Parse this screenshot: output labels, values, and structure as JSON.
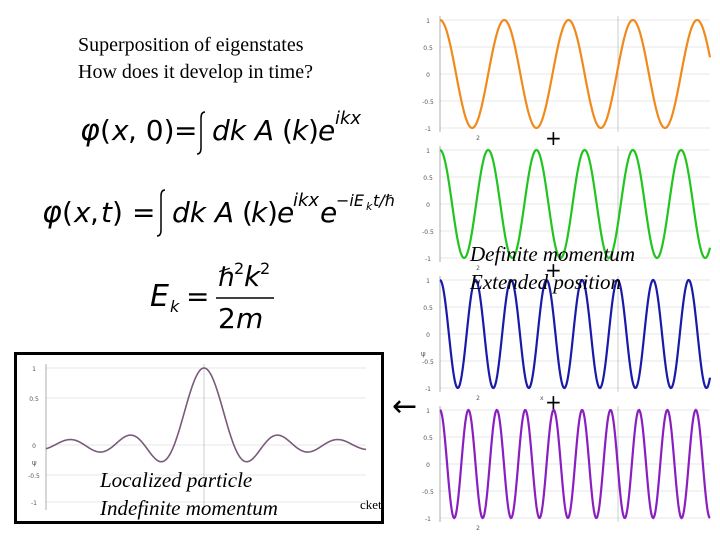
{
  "title": {
    "line1": "Superposition of eigenstates",
    "line2": "How does it develop in time?"
  },
  "equations": {
    "eq1": "φ(x, 0) = ∫dk A(k)e^{ikx}",
    "eq2": "φ(x, t) = ∫dk A(k)e^{ikx} e^{−iE_k t/ℏ}",
    "eq3": "E_k = ℏ²k² / 2m"
  },
  "captions": {
    "right_line1": "Definite momentum",
    "right_line2": "Extended position",
    "left_line1": "Localized particle",
    "left_line2": "Indefinite momentum",
    "packet_label": "cket"
  },
  "symbols": {
    "plus": "+",
    "arrow": "←"
  },
  "colors": {
    "wave1": "#f08a1c",
    "wave2": "#22c41f",
    "wave3": "#1a1aa8",
    "wave4": "#8a1fc0",
    "packet": "#7a5a7a",
    "grid": "#d0d0d0"
  },
  "plots": [
    {
      "name": "orange-wave",
      "cycles": 4.2,
      "y_ticks": [
        "1",
        "0.5",
        "0",
        "-0.5",
        "-1"
      ],
      "x_tick": "2"
    },
    {
      "name": "green-wave",
      "cycles": 5.6,
      "y_ticks": [
        "1",
        "0.5",
        "0",
        "-0.5",
        "-1"
      ],
      "x_tick": "2"
    },
    {
      "name": "blue-wave",
      "cycles": 7.6,
      "y_ticks": [
        "1",
        "0.5",
        "0",
        "-0.5",
        "-1"
      ],
      "x_tick": "2",
      "ylabel": "ψ",
      "xlabel": "x"
    },
    {
      "name": "purple-wave",
      "cycles": 9.5,
      "y_ticks": [
        "1",
        "0.5",
        "0",
        "-0.5",
        "-1"
      ],
      "x_tick": "2"
    }
  ],
  "packet_plot": {
    "y_ticks": [
      "1",
      "0.5",
      "0",
      "-0.5",
      "-1"
    ],
    "ylabel": "ψ"
  }
}
